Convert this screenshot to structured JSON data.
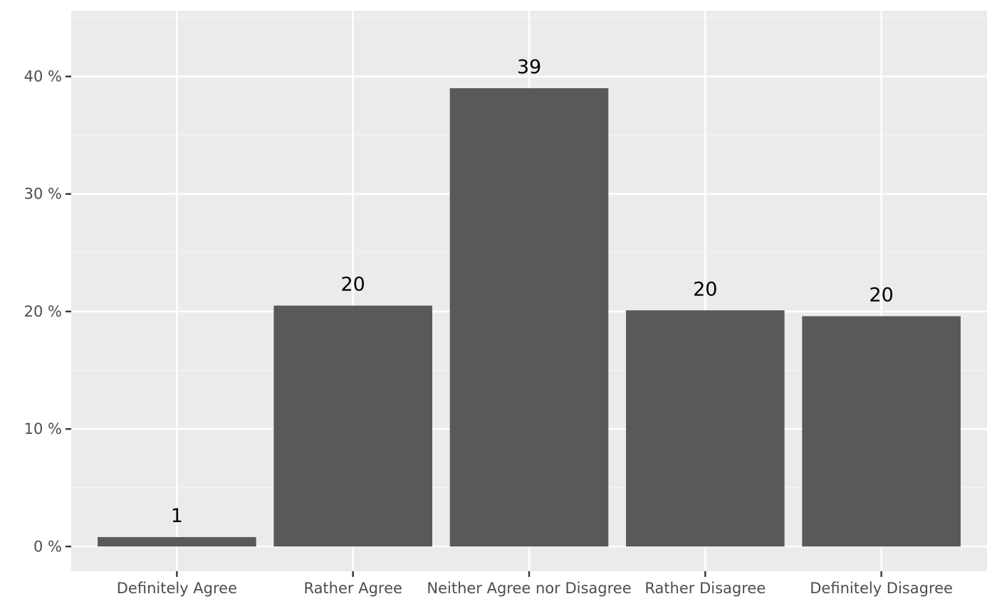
{
  "chart_data": {
    "type": "bar",
    "categories": [
      "Definitely Agree",
      "Rather Agree",
      "Neither Agree nor Disagree",
      "Rather Disagree",
      "Definitely Disagree"
    ],
    "values": [
      0.8,
      20.5,
      39.0,
      20.1,
      19.6
    ],
    "data_labels": [
      "1",
      "20",
      "39",
      "20",
      "20"
    ],
    "y_ticks": [
      0,
      10,
      20,
      30,
      40
    ],
    "y_tick_suffix": " %",
    "ylim": [
      -2.1,
      45.6
    ],
    "grid": true,
    "title": "",
    "xlabel": "",
    "ylabel": "",
    "colors": {
      "bar": "#595959",
      "panel": "#ebebeb",
      "grid_major": "#ffffff",
      "grid_minor": "#f5f5f5",
      "tick_text": "#4d4d4d",
      "label_text": "#000000"
    }
  }
}
